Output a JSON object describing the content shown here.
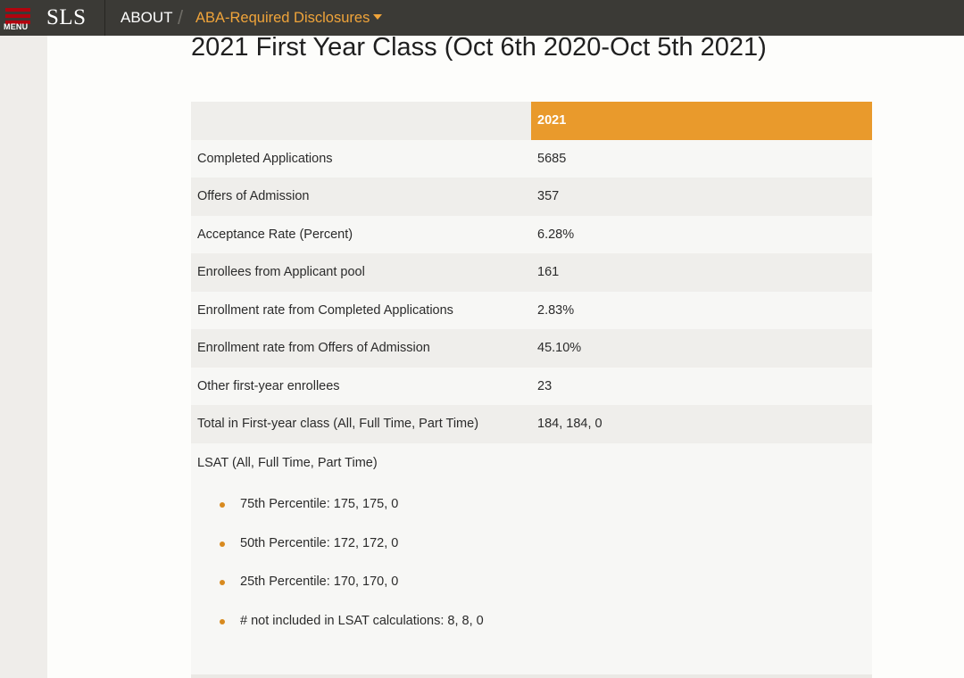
{
  "nav": {
    "menu_label": "MENU",
    "logo": "SLS",
    "breadcrumb_about": "ABOUT",
    "breadcrumb_sep": "/",
    "breadcrumb_current": "ABA-Required Disclosures"
  },
  "page": {
    "title": "2021 First Year Class (Oct 6th 2020-Oct 5th 2021)"
  },
  "table": {
    "header": [
      "",
      "2021"
    ],
    "rows": [
      {
        "label": "Completed Applications",
        "value": "5685"
      },
      {
        "label": "Offers of Admission",
        "value": "357"
      },
      {
        "label": "Acceptance Rate (Percent)",
        "value": "6.28%"
      },
      {
        "label": "Enrollees from Applicant pool",
        "value": "161"
      },
      {
        "label": "Enrollment rate from Completed Applications",
        "value": "2.83%"
      },
      {
        "label": "Enrollment rate from Offers of Admission",
        "value": "45.10%"
      },
      {
        "label": "Other first-year enrollees",
        "value": "23"
      },
      {
        "label": "Total in First-year class (All, Full Time, Part Time)",
        "value": "184, 184, 0"
      }
    ]
  },
  "lsat": {
    "label": "LSAT (All, Full Time, Part Time)",
    "items": [
      "75th Percentile: 175, 175, 0",
      "50th Percentile: 172, 172, 0",
      "25th Percentile: 170, 170, 0",
      "# not included in LSAT calculations: 8, 8, 0"
    ]
  },
  "colors": {
    "topbar": "#3b3a36",
    "accent": "#e99a2c",
    "menu_icon": "#b1040e"
  },
  "icons": {
    "menu": "hamburger-icon",
    "dropdown": "caret-down-icon",
    "bullet": "bullet-dot-icon"
  }
}
